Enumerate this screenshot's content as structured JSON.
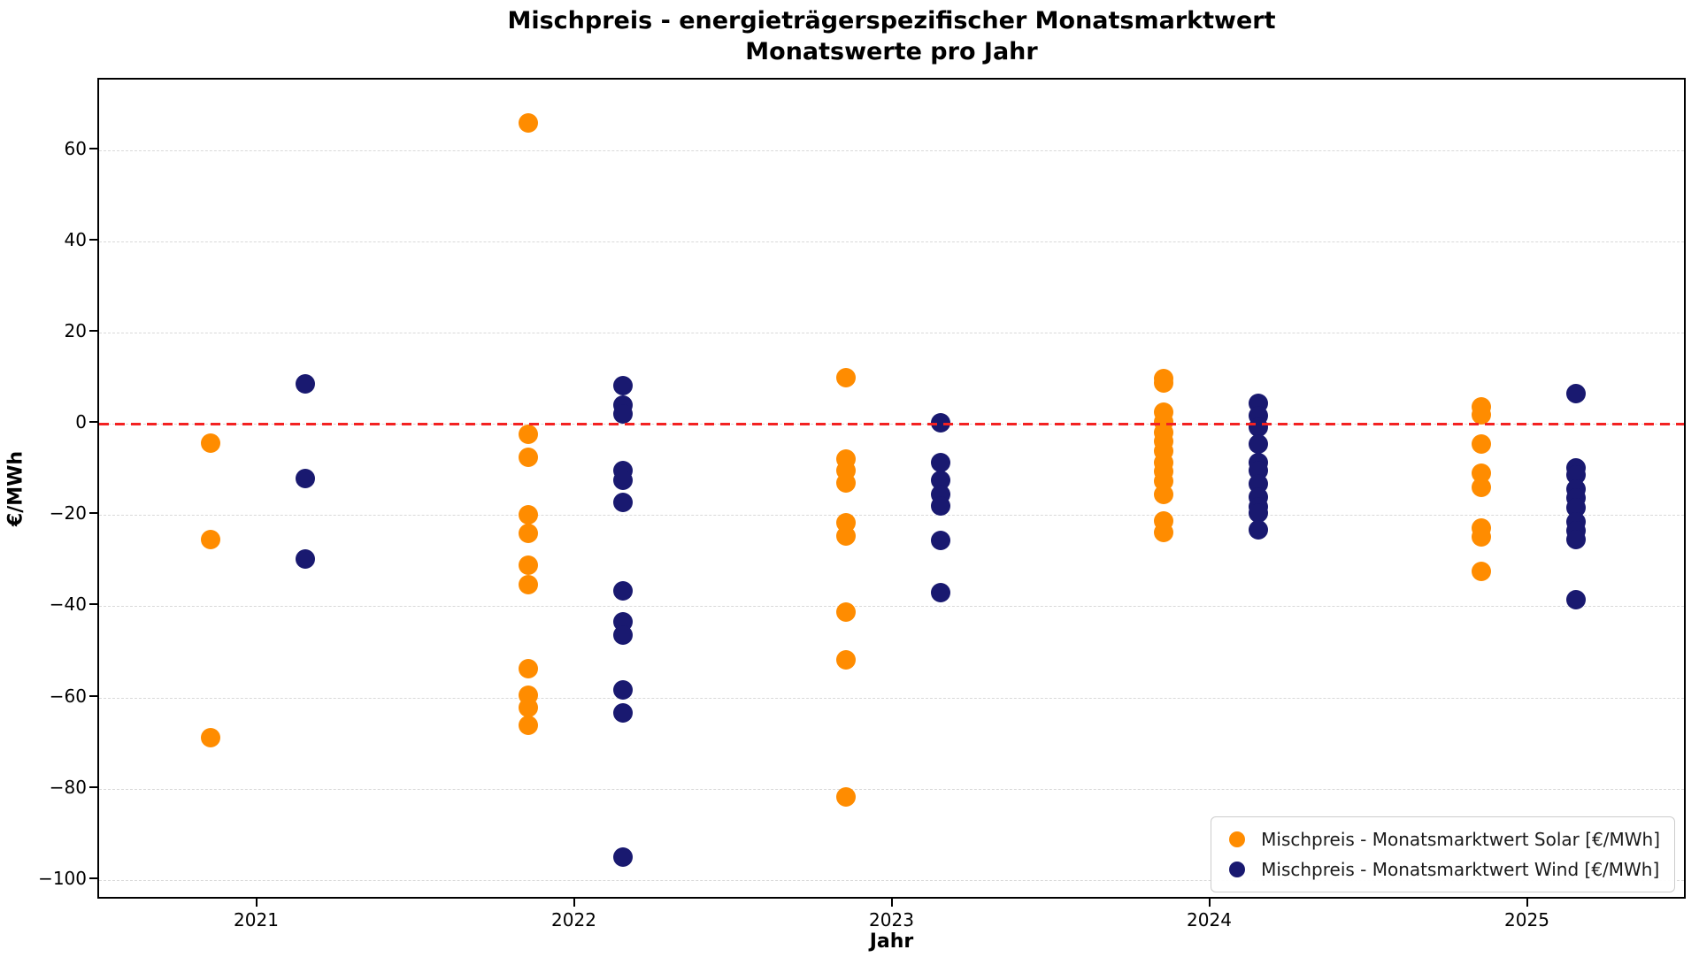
{
  "chart_data": {
    "type": "scatter",
    "title": "Mischpreis - energieträgerspezifischer Monatsmarktwert",
    "subtitle": "Monatswerte pro Jahr",
    "xlabel": "Jahr",
    "ylabel": "€/MWh",
    "xlim": [
      2020.5,
      2025.5
    ],
    "ylim": [
      -104.5,
      75.5
    ],
    "xticks": [
      2021,
      2022,
      2023,
      2024,
      2025
    ],
    "yticks": [
      60,
      40,
      20,
      0,
      -20,
      -40,
      -60,
      -80,
      -100
    ],
    "grid": "horizontal-dashed",
    "legend_position": "lower-right",
    "zero_line": {
      "y": 0,
      "color": "#f32222",
      "style": "dashed"
    },
    "series": [
      {
        "name": "Mischpreis - Monatsmarktwert Solar [€/MWh]",
        "color": "#ff8c00",
        "x_offset": -0.15,
        "points": [
          {
            "year": 2021,
            "values": [
              -4.3,
              -25.4,
              -68.9
            ]
          },
          {
            "year": 2022,
            "values": [
              66,
              -2.2,
              -7.4,
              -20,
              -24,
              -31,
              -35.3,
              -53.6,
              -59.5,
              -62.3,
              -66
            ]
          },
          {
            "year": 2023,
            "values": [
              10.1,
              -7.7,
              -10.2,
              -12.9,
              -21.6,
              -24.5,
              -41.2,
              -51.7,
              -81.9
            ]
          },
          {
            "year": 2024,
            "values": [
              10,
              8.9,
              2.6,
              0.5,
              -1.8,
              -3.9,
              -5.9,
              -8.4,
              -10.5,
              -12.6,
              -15.5,
              -21.3,
              -23.8
            ]
          },
          {
            "year": 2025,
            "values": [
              3.8,
              1.9,
              -4.4,
              -10.8,
              -13.9,
              -22.8,
              -24.7,
              -32.3
            ]
          }
        ]
      },
      {
        "name": "Mischpreis - Monatsmarktwert Wind [€/MWh]",
        "color": "#191970",
        "x_offset": 0.15,
        "points": [
          {
            "year": 2021,
            "values": [
              8.7,
              -12.0,
              -29.6
            ]
          },
          {
            "year": 2022,
            "values": [
              8.3,
              4.1,
              2.2,
              -10.2,
              -12.4,
              -17.3,
              -36.6,
              -43.4,
              -46.3,
              -58.3,
              -63.4,
              -95.0
            ]
          },
          {
            "year": 2023,
            "values": [
              0.3,
              -8.5,
              -12.4,
              -15.5,
              -18.0,
              -25.5,
              -37.0
            ]
          },
          {
            "year": 2024,
            "values": [
              4.5,
              1.8,
              -0.8,
              -4.5,
              -8.4,
              -10.3,
              -13.2,
              -16.1,
              -18.1,
              -19.6,
              -23.2
            ]
          },
          {
            "year": 2025,
            "values": [
              6.6,
              -9.6,
              -11.2,
              -14.4,
              -16.3,
              -18.3,
              -21.5,
              -23.4,
              -25.4,
              -38.5
            ]
          }
        ]
      }
    ]
  }
}
